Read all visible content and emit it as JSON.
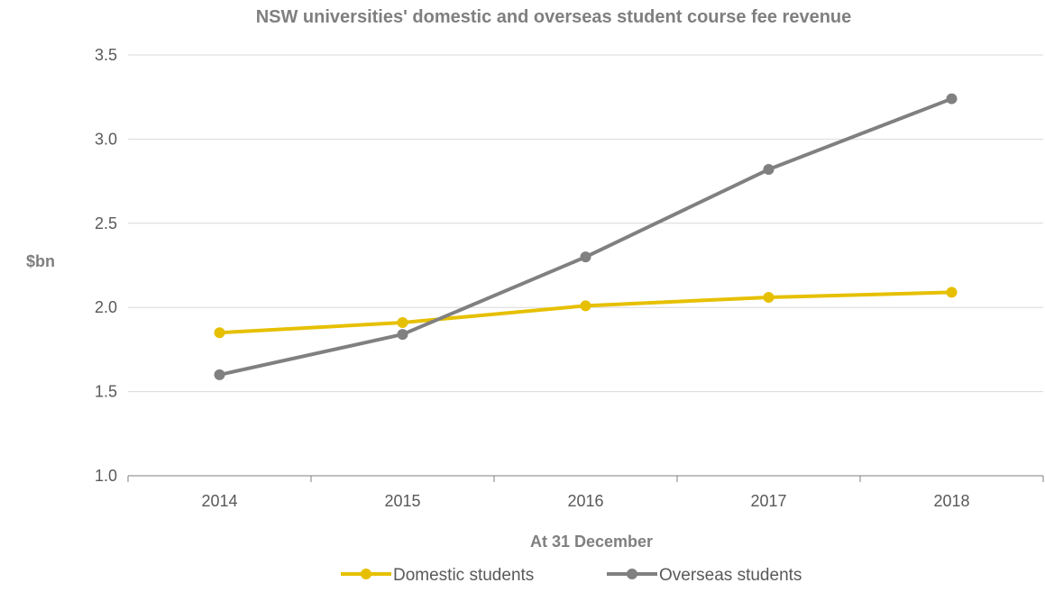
{
  "chart_data": {
    "type": "line",
    "title": "NSW universities' domestic and overseas student course fee revenue",
    "xlabel": "At 31 December",
    "ylabel": "$bn",
    "categories": [
      "2014",
      "2015",
      "2016",
      "2017",
      "2018"
    ],
    "ylim": [
      1.0,
      3.5
    ],
    "yticks": [
      "1.0",
      "1.5",
      "2.0",
      "2.5",
      "3.0",
      "3.5"
    ],
    "grid": true,
    "legend_position": "bottom",
    "series": [
      {
        "name": "Domestic students",
        "color": "#e6c000",
        "values": [
          1.85,
          1.91,
          2.01,
          2.06,
          2.09
        ]
      },
      {
        "name": "Overseas students",
        "color": "#808080",
        "values": [
          1.6,
          1.84,
          2.3,
          2.82,
          3.24
        ]
      }
    ]
  }
}
